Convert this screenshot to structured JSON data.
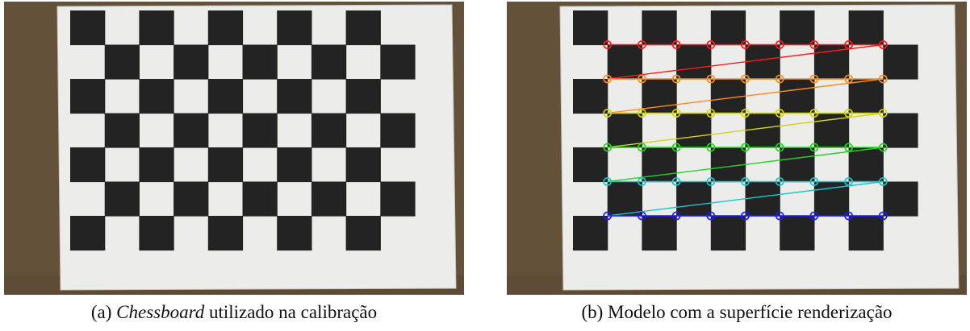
{
  "figure": {
    "panels": [
      {
        "id": "a",
        "caption": {
          "label": "(a)",
          "emph": "Chessboard",
          "rest": " utilizado na calibração"
        },
        "image": "chessboard-photo"
      },
      {
        "id": "b",
        "caption": {
          "label": "(b)",
          "text": "Modelo com a superfície renderização"
        },
        "image": "chessboard-photo-with-detected-corners"
      }
    ],
    "board": {
      "squares_cols": 10,
      "squares_rows": 7,
      "inner_corners_cols": 9,
      "inner_corners_rows": 6
    },
    "colors": {
      "cardboard": "#6b5840",
      "paper": "#ececea",
      "square": "#232323",
      "corner_rows": [
        "#ff1a1a",
        "#ff8c1a",
        "#d4d414",
        "#22d422",
        "#18c8c8",
        "#1a1aff"
      ]
    }
  }
}
